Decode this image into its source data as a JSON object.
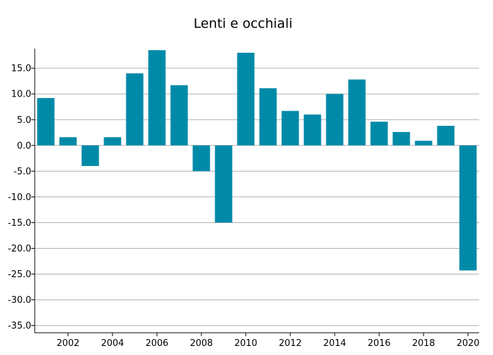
{
  "chart_data": {
    "type": "bar",
    "title": "Lenti e occhiali",
    "xlabel": "",
    "ylabel": "",
    "categories": [
      2001,
      2002,
      2003,
      2004,
      2005,
      2006,
      2007,
      2008,
      2009,
      2010,
      2011,
      2012,
      2013,
      2014,
      2015,
      2016,
      2017,
      2018,
      2019,
      2020
    ],
    "values": [
      9.2,
      1.6,
      -4.0,
      1.6,
      14.0,
      18.5,
      11.7,
      -5.0,
      -15.0,
      18.0,
      11.1,
      6.7,
      6.0,
      10.0,
      12.8,
      4.6,
      2.6,
      0.9,
      3.8,
      -24.3
    ],
    "x_tick_labels": [
      "2002",
      "2004",
      "2006",
      "2008",
      "2010",
      "2012",
      "2014",
      "2016",
      "2018",
      "2020"
    ],
    "y_ticks": [
      15.0,
      10.0,
      5.0,
      0.0,
      -5.0,
      -10.0,
      -15.0,
      -20.0,
      -25.0,
      -30.0,
      -35.0
    ],
    "y_tick_labels": [
      "15.0",
      "10.0",
      "5.0",
      "0.0",
      "-5.0",
      "-10.0",
      "-15.0",
      "-20.0",
      "-25.0",
      "-30.0",
      "-35.0"
    ],
    "ylim": [
      -36.4,
      18.8
    ],
    "grid": true,
    "legend": "none",
    "bar_color": "#008aa8"
  }
}
